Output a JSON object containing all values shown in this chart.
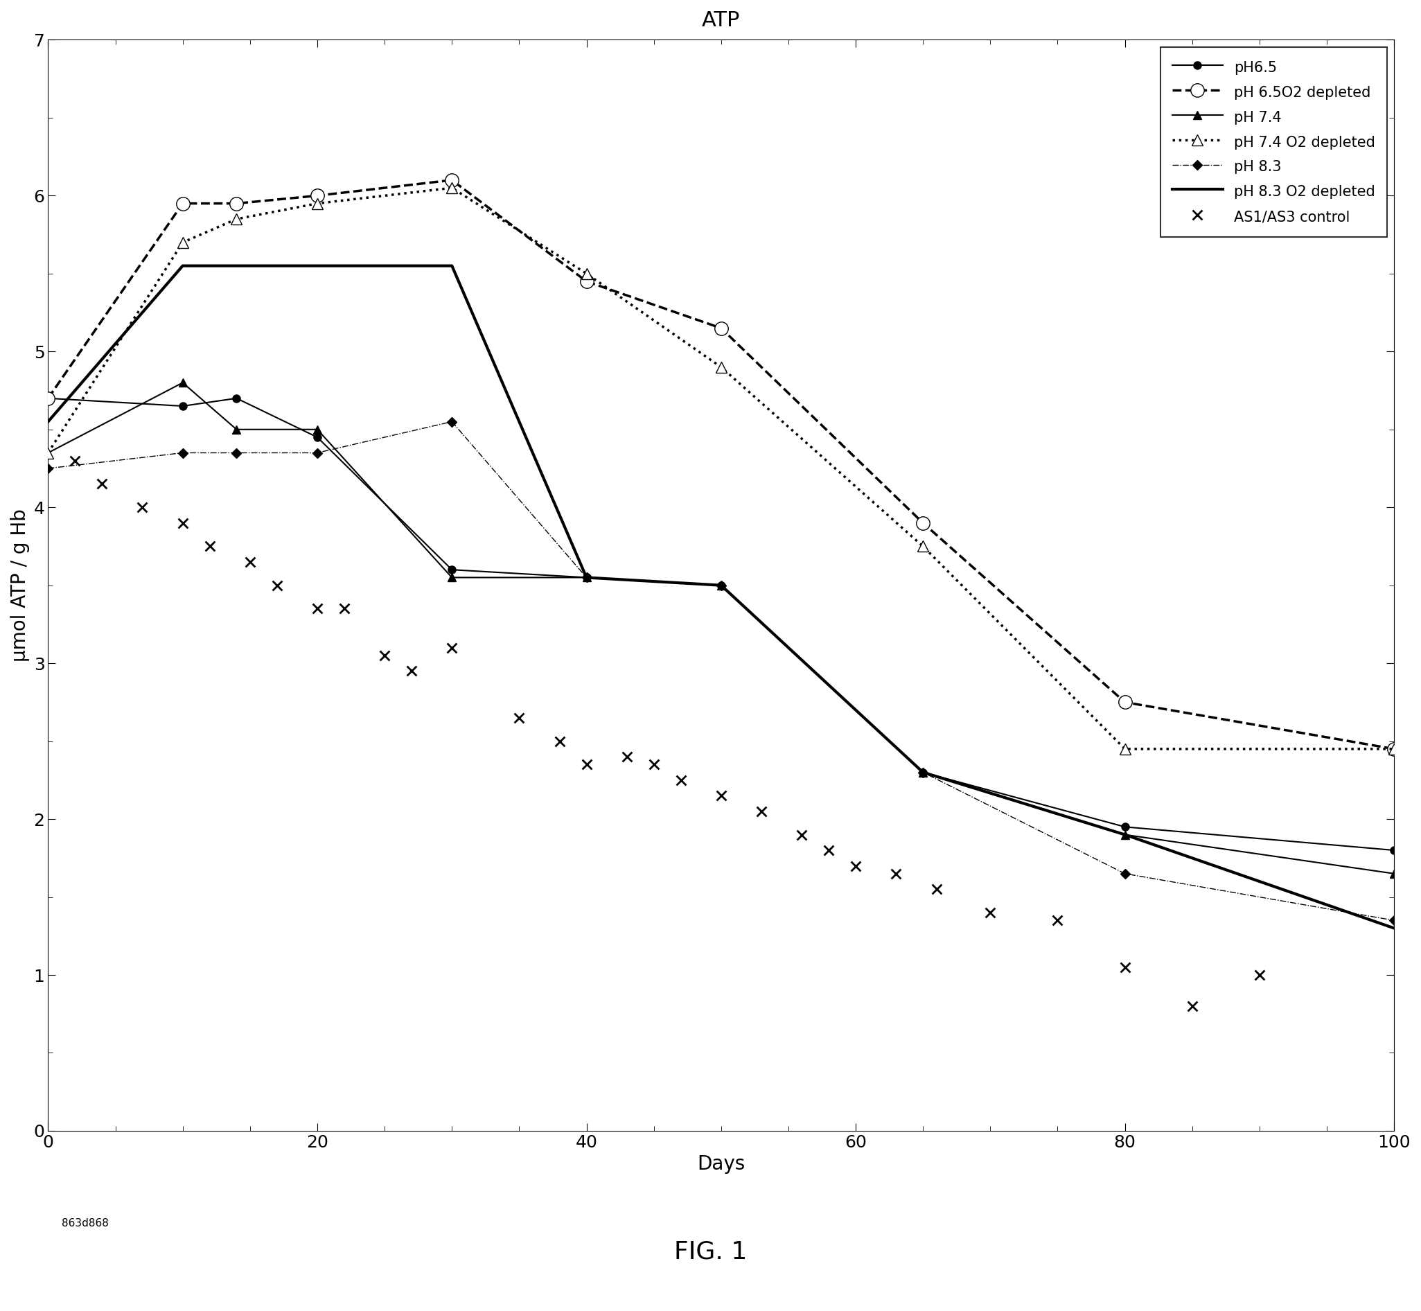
{
  "title": "ATP",
  "xlabel": "Days",
  "ylabel": "μmol ATP / g Hb",
  "fig_label": "FIG. 1",
  "watermark": "863d868",
  "xlim": [
    0,
    100
  ],
  "ylim": [
    0,
    7
  ],
  "xticks": [
    0,
    20,
    40,
    60,
    80,
    100
  ],
  "yticks": [
    0,
    1,
    2,
    3,
    4,
    5,
    6,
    7
  ],
  "series": {
    "pH65": {
      "label": "pH6.5",
      "x": [
        0,
        10,
        14,
        20,
        30,
        40,
        50,
        65,
        80,
        100
      ],
      "y": [
        4.7,
        4.65,
        4.7,
        4.45,
        3.6,
        3.55,
        3.5,
        2.3,
        1.95,
        1.8
      ],
      "linestyle": "-",
      "linewidth": 1.5,
      "marker": "o",
      "markersize": 8,
      "markerfacecolor": "black",
      "color": "black"
    },
    "pH65_O2dep": {
      "label": "pH 6.5O2 depleted",
      "x": [
        0,
        10,
        14,
        20,
        30,
        40,
        50,
        65,
        80,
        100
      ],
      "y": [
        4.7,
        5.95,
        5.95,
        6.0,
        6.1,
        5.45,
        5.15,
        3.9,
        2.75,
        2.45
      ],
      "linestyle": "--",
      "linewidth": 2.5,
      "marker": "o",
      "markersize": 14,
      "markerfacecolor": "white",
      "color": "black"
    },
    "pH74": {
      "label": "pH 7.4",
      "x": [
        0,
        10,
        14,
        20,
        30,
        40,
        50,
        65,
        80,
        100
      ],
      "y": [
        4.35,
        4.8,
        4.5,
        4.5,
        3.55,
        3.55,
        3.5,
        2.3,
        1.9,
        1.65
      ],
      "linestyle": "-",
      "linewidth": 1.5,
      "marker": "^",
      "markersize": 9,
      "markerfacecolor": "black",
      "color": "black"
    },
    "pH74_O2dep": {
      "label": "pH 7.4 O2 depleted",
      "x": [
        0,
        10,
        14,
        20,
        30,
        40,
        50,
        65,
        80,
        100
      ],
      "y": [
        4.35,
        5.7,
        5.85,
        5.95,
        6.05,
        5.5,
        4.9,
        3.75,
        2.45,
        2.45
      ],
      "linestyle": ":",
      "linewidth": 2.5,
      "marker": "^",
      "markersize": 12,
      "markerfacecolor": "white",
      "color": "black"
    },
    "pH83": {
      "label": "pH 8.3",
      "x": [
        0,
        10,
        14,
        20,
        30,
        40,
        50,
        65,
        80,
        100
      ],
      "y": [
        4.25,
        4.35,
        4.35,
        4.35,
        4.55,
        3.55,
        3.5,
        2.3,
        1.65,
        1.35
      ],
      "linestyle": "-.",
      "linewidth": 1.0,
      "marker": "D",
      "markersize": 7,
      "markerfacecolor": "black",
      "color": "black"
    },
    "pH83_O2dep": {
      "label": "pH 8.3 O2 depleted",
      "x": [
        0,
        10,
        14,
        20,
        30,
        40,
        50,
        65,
        80,
        100
      ],
      "y": [
        4.55,
        5.55,
        5.55,
        5.55,
        5.55,
        3.55,
        3.5,
        2.3,
        1.9,
        1.3
      ],
      "linestyle": "-",
      "linewidth": 3.0,
      "marker": "None",
      "markersize": 0,
      "markerfacecolor": "black",
      "color": "black"
    }
  },
  "as1_as3_x": [
    2,
    4,
    7,
    10,
    12,
    15,
    17,
    20,
    22,
    25,
    27,
    30,
    35,
    38,
    40,
    43,
    45,
    47,
    50,
    53,
    56,
    58,
    60,
    63,
    66,
    70,
    75,
    80,
    85,
    90
  ],
  "as1_as3_y": [
    4.3,
    4.15,
    4.0,
    3.9,
    3.75,
    3.65,
    3.5,
    3.35,
    3.35,
    3.05,
    2.95,
    3.1,
    2.65,
    2.5,
    2.35,
    2.4,
    2.35,
    2.25,
    2.15,
    2.05,
    1.9,
    1.8,
    1.7,
    1.65,
    1.55,
    1.4,
    1.35,
    1.05,
    0.8,
    1.0
  ]
}
